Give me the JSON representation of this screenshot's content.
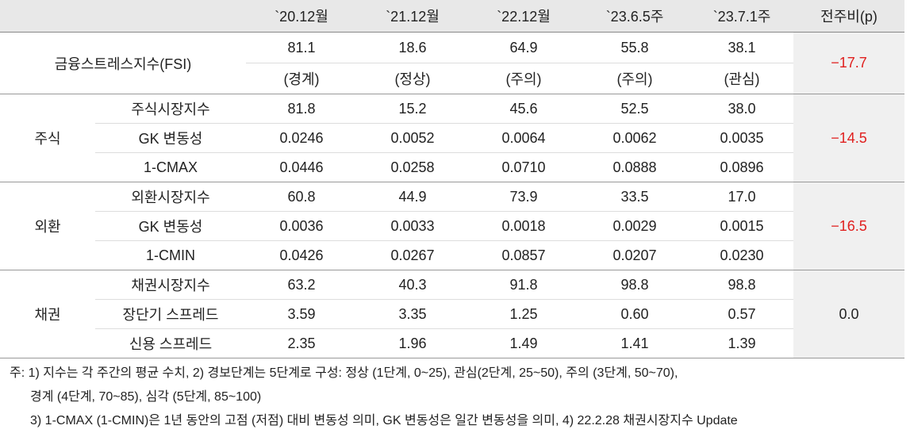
{
  "table": {
    "columns": [
      "`20.12월",
      "`21.12월",
      "`22.12월",
      "`23.6.5주",
      "`23.7.1주",
      "전주비(p)"
    ],
    "fsi": {
      "label": "금융스트레스지수(FSI)",
      "values": [
        "81.1",
        "18.6",
        "64.9",
        "55.8",
        "38.1"
      ],
      "levels": [
        "(경계)",
        "(정상)",
        "(주의)",
        "(주의)",
        "(관심)"
      ],
      "change": "−17.7"
    },
    "groups": [
      {
        "label": "주식",
        "change": "−14.5",
        "rows": [
          {
            "label": "주식시장지수",
            "values": [
              "81.8",
              "15.2",
              "45.6",
              "52.5",
              "38.0"
            ]
          },
          {
            "label": "GK 변동성",
            "values": [
              "0.0246",
              "0.0052",
              "0.0064",
              "0.0062",
              "0.0035"
            ]
          },
          {
            "label": "1-CMAX",
            "values": [
              "0.0446",
              "0.0258",
              "0.0710",
              "0.0888",
              "0.0896"
            ]
          }
        ]
      },
      {
        "label": "외환",
        "change": "−16.5",
        "rows": [
          {
            "label": "외환시장지수",
            "values": [
              "60.8",
              "44.9",
              "73.9",
              "33.5",
              "17.0"
            ]
          },
          {
            "label": "GK 변동성",
            "values": [
              "0.0036",
              "0.0033",
              "0.0018",
              "0.0029",
              "0.0015"
            ]
          },
          {
            "label": "1-CMIN",
            "values": [
              "0.0426",
              "0.0267",
              "0.0857",
              "0.0207",
              "0.0230"
            ]
          }
        ]
      },
      {
        "label": "채권",
        "change": "0.0",
        "rows": [
          {
            "label": "채권시장지수",
            "values": [
              "63.2",
              "40.3",
              "91.8",
              "98.8",
              "98.8"
            ]
          },
          {
            "label": "장단기 스프레드",
            "values": [
              "3.59",
              "3.35",
              "1.25",
              "0.60",
              "0.57"
            ]
          },
          {
            "label": "신용 스프레드",
            "values": [
              "2.35",
              "1.96",
              "1.49",
              "1.41",
              "1.39"
            ]
          }
        ]
      }
    ],
    "notes": [
      "주: 1) 지수는 각 주간의 평균 수치, 2) 경보단계는 5단계로 구성: 정상 (1단계, 0~25), 관심(2단계, 25~50), 주의 (3단계, 50~70),",
      "경계 (4단계, 70~85), 심각 (5단계, 85~100)",
      "3) 1-CMAX (1-CMIN)은 1년 동안의 고점 (저점) 대비 변동성 의미, GK 변동성은 일간 변동성을 의미, 4) 22.2.28 채권시장지수 Update"
    ]
  }
}
